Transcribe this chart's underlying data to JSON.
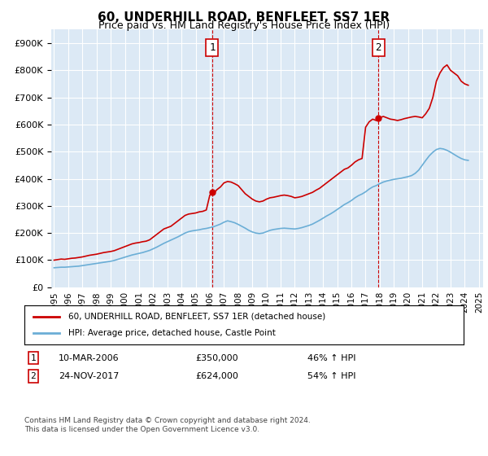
{
  "title": "60, UNDERHILL ROAD, BENFLEET, SS7 1ER",
  "subtitle": "Price paid vs. HM Land Registry's House Price Index (HPI)",
  "background_color": "#dce9f5",
  "plot_bg_color": "#dce9f5",
  "red_line_label": "60, UNDERHILL ROAD, BENFLEET, SS7 1ER (detached house)",
  "blue_line_label": "HPI: Average price, detached house, Castle Point",
  "footer": "Contains HM Land Registry data © Crown copyright and database right 2024.\nThis data is licensed under the Open Government Licence v3.0.",
  "annotation1": {
    "num": "1",
    "date": "10-MAR-2006",
    "price": "£350,000",
    "hpi": "46% ↑ HPI"
  },
  "annotation2": {
    "num": "2",
    "date": "24-NOV-2017",
    "price": "£624,000",
    "hpi": "54% ↑ HPI"
  },
  "ylim": [
    0,
    950000
  ],
  "yticks": [
    0,
    100000,
    200000,
    300000,
    400000,
    500000,
    600000,
    700000,
    800000,
    900000
  ],
  "red_x": [
    1995.0,
    1995.25,
    1995.5,
    1995.75,
    1996.0,
    1996.25,
    1996.5,
    1996.75,
    1997.0,
    1997.25,
    1997.5,
    1997.75,
    1998.0,
    1998.25,
    1998.5,
    1998.75,
    1999.0,
    1999.25,
    1999.5,
    1999.75,
    2000.0,
    2000.25,
    2000.5,
    2000.75,
    2001.0,
    2001.25,
    2001.5,
    2001.75,
    2002.0,
    2002.25,
    2002.5,
    2002.75,
    2003.0,
    2003.25,
    2003.5,
    2003.75,
    2004.0,
    2004.25,
    2004.5,
    2004.75,
    2005.0,
    2005.25,
    2005.5,
    2005.75,
    2006.0,
    2006.25,
    2006.5,
    2006.75,
    2007.0,
    2007.25,
    2007.5,
    2007.75,
    2008.0,
    2008.25,
    2008.5,
    2008.75,
    2009.0,
    2009.25,
    2009.5,
    2009.75,
    2010.0,
    2010.25,
    2010.5,
    2010.75,
    2011.0,
    2011.25,
    2011.5,
    2011.75,
    2012.0,
    2012.25,
    2012.5,
    2012.75,
    2013.0,
    2013.25,
    2013.5,
    2013.75,
    2014.0,
    2014.25,
    2014.5,
    2014.75,
    2015.0,
    2015.25,
    2015.5,
    2015.75,
    2016.0,
    2016.25,
    2016.5,
    2016.75,
    2017.0,
    2017.25,
    2017.5,
    2017.75,
    2018.0,
    2018.25,
    2018.5,
    2018.75,
    2019.0,
    2019.25,
    2019.5,
    2019.75,
    2020.0,
    2020.25,
    2020.5,
    2020.75,
    2021.0,
    2021.25,
    2021.5,
    2021.75,
    2022.0,
    2022.25,
    2022.5,
    2022.75,
    2023.0,
    2023.25,
    2023.5,
    2023.75,
    2024.0,
    2024.25
  ],
  "red_y": [
    100000,
    102000,
    104000,
    103000,
    105000,
    107000,
    108000,
    110000,
    112000,
    115000,
    118000,
    120000,
    122000,
    125000,
    128000,
    130000,
    132000,
    135000,
    140000,
    145000,
    150000,
    155000,
    160000,
    163000,
    165000,
    168000,
    170000,
    175000,
    185000,
    195000,
    205000,
    215000,
    220000,
    225000,
    235000,
    245000,
    255000,
    265000,
    270000,
    272000,
    274000,
    278000,
    280000,
    285000,
    340000,
    345000,
    360000,
    370000,
    385000,
    390000,
    388000,
    382000,
    375000,
    360000,
    345000,
    335000,
    325000,
    318000,
    315000,
    318000,
    325000,
    330000,
    332000,
    335000,
    338000,
    340000,
    338000,
    335000,
    330000,
    332000,
    335000,
    340000,
    345000,
    350000,
    358000,
    365000,
    375000,
    385000,
    395000,
    405000,
    415000,
    425000,
    435000,
    440000,
    450000,
    462000,
    470000,
    475000,
    590000,
    610000,
    620000,
    615000,
    625000,
    630000,
    625000,
    620000,
    618000,
    615000,
    618000,
    622000,
    625000,
    628000,
    630000,
    628000,
    625000,
    640000,
    660000,
    700000,
    760000,
    790000,
    810000,
    820000,
    800000,
    790000,
    780000,
    760000,
    750000,
    745000
  ],
  "blue_x": [
    1995.0,
    1995.25,
    1995.5,
    1995.75,
    1996.0,
    1996.25,
    1996.5,
    1996.75,
    1997.0,
    1997.25,
    1997.5,
    1997.75,
    1998.0,
    1998.25,
    1998.5,
    1998.75,
    1999.0,
    1999.25,
    1999.5,
    1999.75,
    2000.0,
    2000.25,
    2000.5,
    2000.75,
    2001.0,
    2001.25,
    2001.5,
    2001.75,
    2002.0,
    2002.25,
    2002.5,
    2002.75,
    2003.0,
    2003.25,
    2003.5,
    2003.75,
    2004.0,
    2004.25,
    2004.5,
    2004.75,
    2005.0,
    2005.25,
    2005.5,
    2005.75,
    2006.0,
    2006.25,
    2006.5,
    2006.75,
    2007.0,
    2007.25,
    2007.5,
    2007.75,
    2008.0,
    2008.25,
    2008.5,
    2008.75,
    2009.0,
    2009.25,
    2009.5,
    2009.75,
    2010.0,
    2010.25,
    2010.5,
    2010.75,
    2011.0,
    2011.25,
    2011.5,
    2011.75,
    2012.0,
    2012.25,
    2012.5,
    2012.75,
    2013.0,
    2013.25,
    2013.5,
    2013.75,
    2014.0,
    2014.25,
    2014.5,
    2014.75,
    2015.0,
    2015.25,
    2015.5,
    2015.75,
    2016.0,
    2016.25,
    2016.5,
    2016.75,
    2017.0,
    2017.25,
    2017.5,
    2017.75,
    2018.0,
    2018.25,
    2018.5,
    2018.75,
    2019.0,
    2019.25,
    2019.5,
    2019.75,
    2020.0,
    2020.25,
    2020.5,
    2020.75,
    2021.0,
    2021.25,
    2021.5,
    2021.75,
    2022.0,
    2022.25,
    2022.5,
    2022.75,
    2023.0,
    2023.25,
    2023.5,
    2023.75,
    2024.0,
    2024.25
  ],
  "blue_y": [
    72000,
    73000,
    74000,
    74000,
    75000,
    76000,
    77000,
    78000,
    80000,
    82000,
    84000,
    86000,
    88000,
    90000,
    92000,
    94000,
    96000,
    99000,
    103000,
    107000,
    111000,
    115000,
    119000,
    122000,
    125000,
    128000,
    132000,
    136000,
    142000,
    148000,
    155000,
    162000,
    168000,
    174000,
    180000,
    186000,
    193000,
    200000,
    205000,
    208000,
    210000,
    212000,
    215000,
    217000,
    220000,
    223000,
    228000,
    233000,
    240000,
    245000,
    242000,
    238000,
    232000,
    225000,
    218000,
    210000,
    204000,
    200000,
    198000,
    200000,
    205000,
    210000,
    213000,
    215000,
    217000,
    218000,
    217000,
    216000,
    215000,
    217000,
    220000,
    224000,
    228000,
    233000,
    240000,
    247000,
    255000,
    263000,
    270000,
    278000,
    287000,
    296000,
    305000,
    312000,
    320000,
    330000,
    338000,
    344000,
    352000,
    362000,
    370000,
    375000,
    382000,
    388000,
    392000,
    395000,
    398000,
    400000,
    402000,
    405000,
    408000,
    412000,
    420000,
    432000,
    450000,
    468000,
    485000,
    498000,
    508000,
    512000,
    510000,
    505000,
    498000,
    490000,
    482000,
    475000,
    470000,
    468000
  ],
  "sale1_x": 2006.17,
  "sale1_y": 350000,
  "sale2_x": 2017.9,
  "sale2_y": 624000,
  "vline1_x": 2006.17,
  "vline2_x": 2017.9,
  "xtick_years": [
    1995,
    1996,
    1997,
    1998,
    1999,
    2000,
    2001,
    2002,
    2003,
    2004,
    2005,
    2006,
    2007,
    2008,
    2009,
    2010,
    2011,
    2012,
    2013,
    2014,
    2015,
    2016,
    2017,
    2018,
    2019,
    2020,
    2021,
    2022,
    2023,
    2024,
    2025
  ]
}
